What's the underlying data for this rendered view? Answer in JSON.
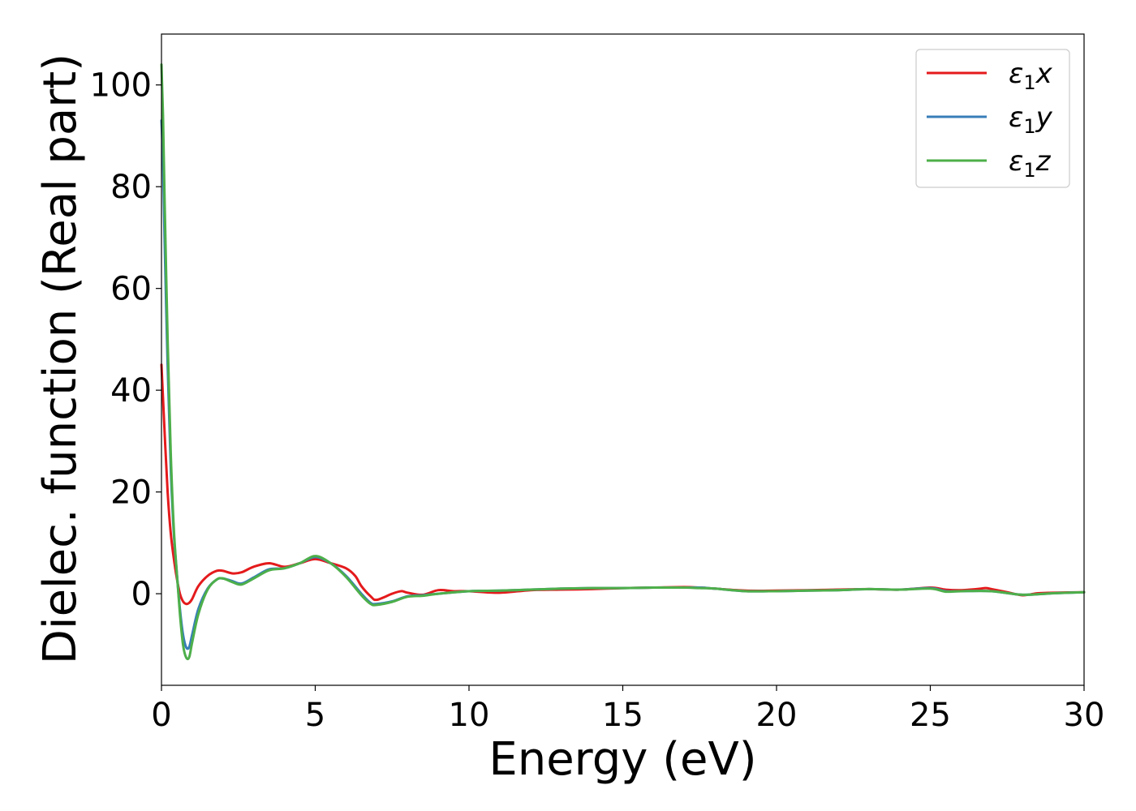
{
  "chart_data": {
    "type": "line",
    "xlabel": "Energy (eV)",
    "ylabel": "Dielec. function (Real part)",
    "xlim": [
      0,
      30
    ],
    "ylim": [
      -18,
      110
    ],
    "xticks": [
      0,
      5,
      10,
      15,
      20,
      25,
      30
    ],
    "yticks": [
      0,
      20,
      40,
      60,
      80,
      100
    ],
    "grid": false,
    "legend_position": "top-right",
    "series": [
      {
        "name": "ε₁x",
        "legend_base": "ε",
        "legend_sub": "1",
        "legend_var": "x",
        "color": "#e41a1c",
        "x": [
          0,
          0.1,
          0.2,
          0.3,
          0.4,
          0.5,
          0.6,
          0.7,
          0.8,
          0.9,
          1.0,
          1.2,
          1.5,
          1.8,
          2.0,
          2.3,
          2.6,
          3.0,
          3.5,
          4.0,
          4.5,
          5.0,
          5.5,
          6.0,
          6.3,
          6.5,
          6.8,
          7.0,
          7.5,
          7.8,
          8.0,
          8.5,
          9.0,
          9.5,
          10,
          11,
          12,
          13,
          14,
          15,
          16,
          17,
          17.5,
          18,
          19,
          20,
          21,
          22,
          23,
          24,
          25,
          25.5,
          26,
          26.5,
          26.8,
          27,
          27.5,
          28,
          28.5,
          29,
          30
        ],
        "y": [
          45,
          32,
          20,
          12,
          7,
          3,
          0,
          -1.5,
          -2,
          -1.8,
          -1,
          1.5,
          3.5,
          4.5,
          4.5,
          4,
          4.2,
          5.3,
          6,
          5.3,
          6,
          6.8,
          6,
          5,
          3.5,
          1.5,
          -0.5,
          -1.2,
          0,
          0.5,
          0.2,
          -0.2,
          0.7,
          0.5,
          0.5,
          0.2,
          0.7,
          0.8,
          0.9,
          1.1,
          1.2,
          1.3,
          1.2,
          1.0,
          0.6,
          0.6,
          0.7,
          0.8,
          0.9,
          0.8,
          1.2,
          0.8,
          0.7,
          0.9,
          1.1,
          0.9,
          0.3,
          -0.3,
          0.1,
          0.2,
          0.3
        ]
      },
      {
        "name": "ε₁y",
        "legend_base": "ε",
        "legend_sub": "1",
        "legend_var": "y",
        "color": "#377eb8",
        "x": [
          0,
          0.05,
          0.1,
          0.2,
          0.3,
          0.4,
          0.5,
          0.6,
          0.7,
          0.8,
          0.9,
          1.0,
          1.2,
          1.5,
          1.8,
          2.0,
          2.3,
          2.6,
          3.0,
          3.5,
          4.0,
          4.5,
          5.0,
          5.5,
          6.0,
          6.5,
          6.8,
          7.0,
          7.5,
          8.0,
          8.5,
          9.0,
          10,
          11,
          12,
          13,
          14,
          15,
          16,
          17,
          17.5,
          18,
          19,
          20,
          21,
          22,
          23,
          24,
          25,
          25.5,
          26,
          27,
          28,
          29,
          30
        ],
        "y": [
          93,
          85,
          70,
          45,
          25,
          12,
          4,
          -3,
          -8,
          -10.5,
          -10.5,
          -8,
          -3,
          1,
          2.8,
          3,
          2.5,
          2,
          3.2,
          4.8,
          5,
          6,
          7.2,
          6,
          3.5,
          0,
          -1.8,
          -2,
          -1.5,
          -0.5,
          -0.3,
          0,
          0.5,
          0.6,
          0.8,
          1.0,
          1.1,
          1.1,
          1.2,
          1.2,
          1.2,
          1.0,
          0.5,
          0.5,
          0.6,
          0.7,
          0.9,
          0.8,
          1.1,
          0.5,
          0.5,
          0.5,
          -0.2,
          0.1,
          0.3
        ]
      },
      {
        "name": "ε₁z",
        "legend_base": "ε",
        "legend_sub": "1",
        "legend_var": "z",
        "color": "#4daf4a",
        "x": [
          0,
          0.05,
          0.1,
          0.2,
          0.3,
          0.4,
          0.5,
          0.6,
          0.7,
          0.8,
          0.9,
          1.0,
          1.2,
          1.5,
          1.8,
          2.0,
          2.3,
          2.6,
          3.0,
          3.5,
          4.0,
          4.5,
          5.0,
          5.5,
          6.0,
          6.5,
          6.8,
          7.0,
          7.5,
          8.0,
          8.5,
          9.0,
          10,
          11,
          12,
          13,
          14,
          15,
          16,
          17,
          17.5,
          18,
          19,
          20,
          21,
          22,
          23,
          24,
          25,
          25.5,
          26,
          27,
          28,
          29,
          30
        ],
        "y": [
          104,
          94,
          78,
          50,
          28,
          13,
          4,
          -4,
          -10,
          -12.5,
          -12.5,
          -9.5,
          -4,
          0.8,
          2.8,
          3,
          2.3,
          1.8,
          3.0,
          4.6,
          5,
          6,
          7.4,
          6,
          3.3,
          -0.3,
          -2,
          -2.2,
          -1.6,
          -0.6,
          -0.4,
          0,
          0.5,
          0.6,
          0.8,
          1.0,
          1.1,
          1.1,
          1.2,
          1.2,
          1.1,
          1.0,
          0.5,
          0.5,
          0.6,
          0.7,
          0.9,
          0.8,
          1.0,
          0.4,
          0.5,
          0.5,
          -0.2,
          0.1,
          0.3
        ]
      }
    ]
  }
}
